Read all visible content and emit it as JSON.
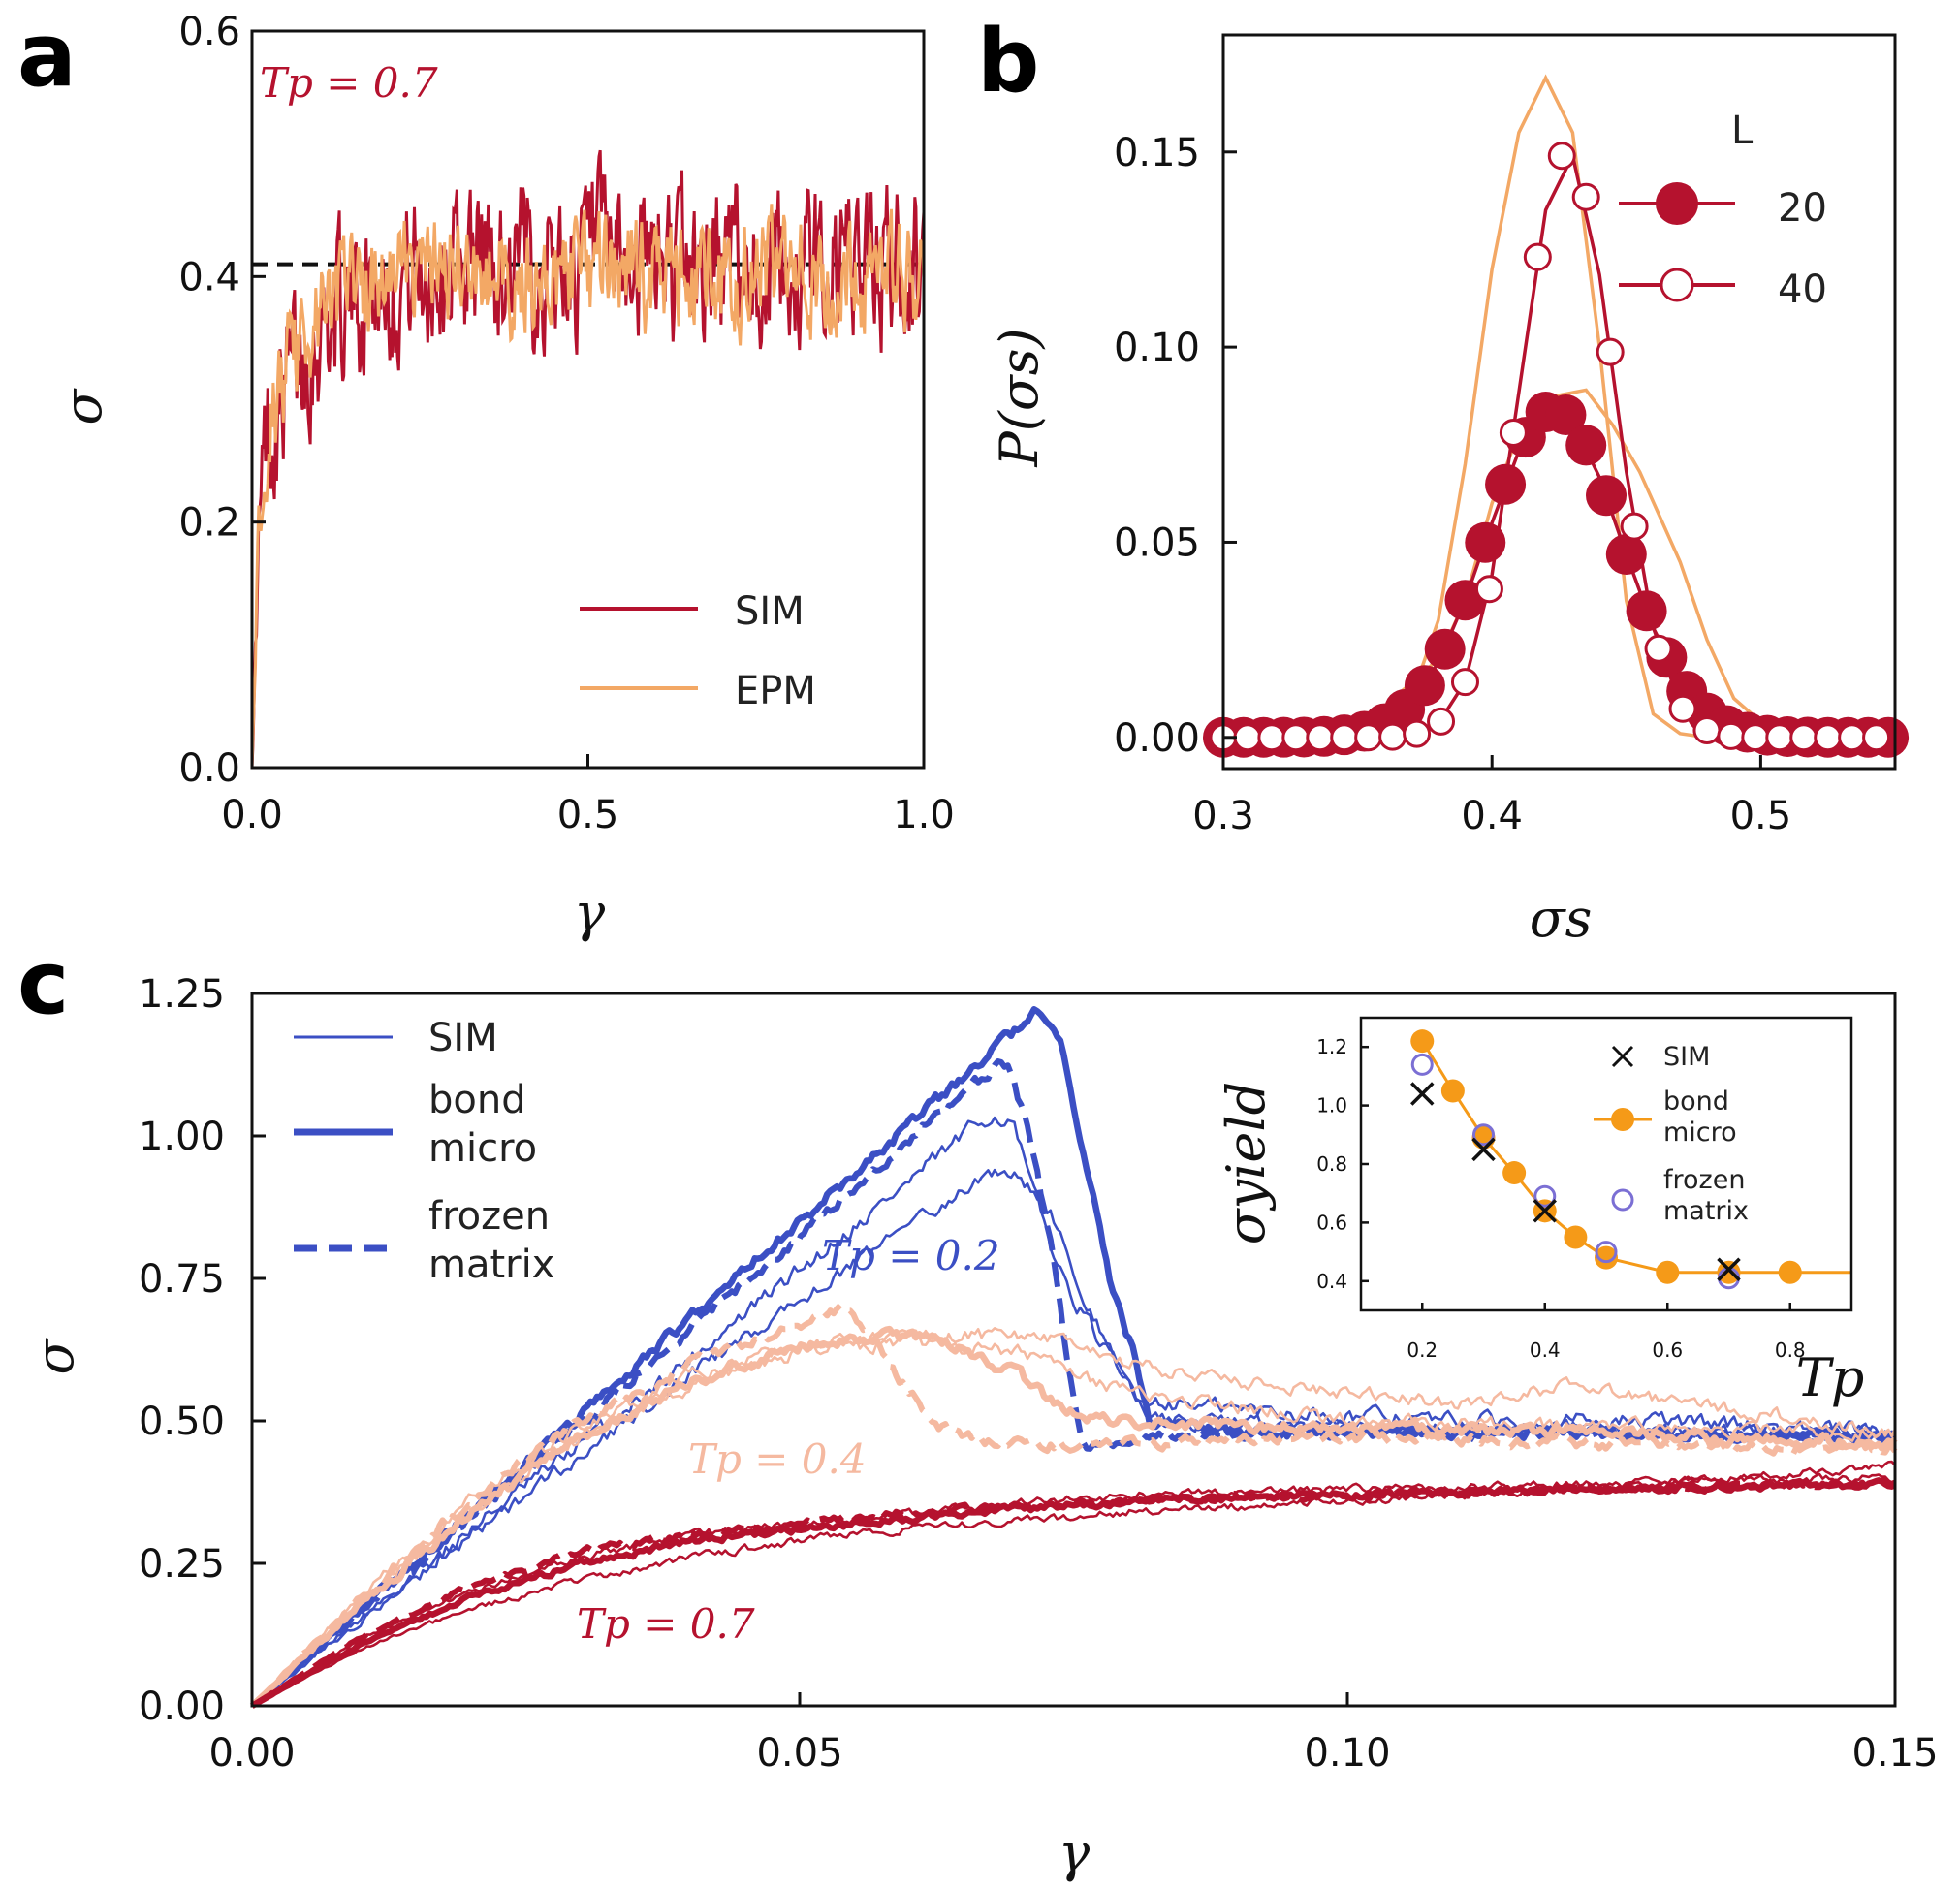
{
  "colors": {
    "sim": "#b5122e",
    "epm": "#f3a865",
    "blue": "#3b4fc4",
    "peach": "#f5b9a0",
    "orange": "#f59a18",
    "purple": "#7b6fd4"
  },
  "chart_data": [
    {
      "id": "a",
      "type": "line",
      "panel_label": "a",
      "xlabel": "γ",
      "ylabel": "σ",
      "xlim": [
        0,
        1
      ],
      "ylim": [
        0,
        0.6
      ],
      "xticks": [
        "0.0",
        "0.5",
        "1.0"
      ],
      "yticks": [
        "0.0",
        "0.2",
        "0.4",
        "0.6"
      ],
      "annotation": "Tp = 0.7",
      "reference_line": 0.41,
      "legend": [
        {
          "name": "SIM",
          "color": "#b5122e"
        },
        {
          "name": "EPM",
          "color": "#f3a865"
        }
      ],
      "series": [
        {
          "name": "SIM",
          "color": "#b5122e",
          "x": [
            0,
            0.01,
            0.02,
            0.04,
            0.07,
            0.1,
            0.15,
            0.2,
            0.3,
            0.4,
            0.6,
            0.8,
            1.0
          ],
          "y": [
            0,
            0.18,
            0.26,
            0.3,
            0.33,
            0.36,
            0.38,
            0.4,
            0.41,
            0.41,
            0.41,
            0.41,
            0.41
          ],
          "noise": 0.05
        },
        {
          "name": "EPM",
          "color": "#f3a865",
          "x": [
            0,
            0.01,
            0.02,
            0.04,
            0.07,
            0.1,
            0.15,
            0.2,
            0.3,
            0.4,
            0.6,
            0.8,
            1.0
          ],
          "y": [
            0,
            0.2,
            0.27,
            0.31,
            0.34,
            0.37,
            0.39,
            0.4,
            0.4,
            0.4,
            0.4,
            0.4,
            0.4
          ],
          "noise": 0.035
        }
      ]
    },
    {
      "id": "b",
      "type": "line",
      "panel_label": "b",
      "xlabel": "σs",
      "ylabel": "P(σs)",
      "xlim": [
        0.3,
        0.55
      ],
      "ylim": [
        -0.008,
        0.18
      ],
      "xticks": [
        "0.3",
        "0.4",
        "0.5"
      ],
      "yticks": [
        "0.00",
        "0.05",
        "0.10",
        "0.15"
      ],
      "legend_title": "L",
      "legend": [
        {
          "name": "20",
          "marker": "filled"
        },
        {
          "name": "40",
          "marker": "open"
        }
      ],
      "series": [
        {
          "name": "20",
          "kind": "markers-line",
          "marker": "filled",
          "color": "#b5122e",
          "mu": 0.423,
          "sigma": 0.025,
          "amp": 0.084
        },
        {
          "name": "40",
          "kind": "markers-line",
          "marker": "open",
          "color": "#b5122e",
          "mu": 0.428,
          "sigma": 0.0175,
          "amp": 0.15
        },
        {
          "name": "EPM 20",
          "kind": "line",
          "color": "#f3a865",
          "x": [
            0.3,
            0.34,
            0.36,
            0.38,
            0.39,
            0.4,
            0.41,
            0.42,
            0.435,
            0.445,
            0.455,
            0.47,
            0.48,
            0.49,
            0.5,
            0.52,
            0.55
          ],
          "y": [
            0.0,
            0.002,
            0.008,
            0.02,
            0.035,
            0.06,
            0.078,
            0.087,
            0.089,
            0.08,
            0.068,
            0.045,
            0.025,
            0.01,
            0.004,
            0.0,
            0.0
          ]
        },
        {
          "name": "EPM 40",
          "kind": "line",
          "color": "#f3a865",
          "x": [
            0.3,
            0.35,
            0.37,
            0.38,
            0.39,
            0.4,
            0.41,
            0.42,
            0.43,
            0.44,
            0.45,
            0.46,
            0.47,
            0.48,
            0.55
          ],
          "y": [
            0.0,
            0.001,
            0.01,
            0.03,
            0.07,
            0.12,
            0.155,
            0.169,
            0.155,
            0.1,
            0.035,
            0.006,
            0.001,
            0.0,
            0.0
          ]
        }
      ]
    },
    {
      "id": "c",
      "type": "line",
      "panel_label": "c",
      "xlabel": "γ",
      "ylabel": "σ",
      "xlim": [
        0,
        0.15
      ],
      "ylim": [
        0,
        1.25
      ],
      "xticks": [
        "0.00",
        "0.05",
        "0.10",
        "0.15"
      ],
      "yticks": [
        "0.00",
        "0.25",
        "0.50",
        "0.75",
        "1.00",
        "1.25"
      ],
      "annotations": [
        "Tp = 0.2",
        "Tp = 0.4",
        "Tp = 0.7"
      ],
      "legend": [
        {
          "name": "SIM",
          "style": "thin"
        },
        {
          "name": "bond micro",
          "style": "thick"
        },
        {
          "name": "frozen matrix",
          "style": "dashed"
        }
      ],
      "series": [
        {
          "name": "Tp 0.2 SIM a",
          "color": "#3b4fc4",
          "style": "thin",
          "x": [
            0,
            0.02,
            0.04,
            0.06,
            0.0675,
            0.0695,
            0.071,
            0.074,
            0.078,
            0.081,
            0.09,
            0.11,
            0.13,
            0.15
          ],
          "y": [
            0,
            0.31,
            0.61,
            0.92,
            1.04,
            1.02,
            0.92,
            0.75,
            0.62,
            0.54,
            0.52,
            0.5,
            0.5,
            0.48
          ],
          "noise": 0.012
        },
        {
          "name": "Tp 0.2 SIM b",
          "color": "#3b4fc4",
          "style": "thin",
          "x": [
            0,
            0.02,
            0.04,
            0.06,
            0.068,
            0.07,
            0.073,
            0.076,
            0.079,
            0.082,
            0.1,
            0.15
          ],
          "y": [
            0,
            0.3,
            0.58,
            0.84,
            0.94,
            0.93,
            0.86,
            0.72,
            0.6,
            0.5,
            0.49,
            0.48
          ],
          "noise": 0.01
        },
        {
          "name": "Tp 0.2 bond micro",
          "color": "#3b4fc4",
          "style": "thick",
          "x": [
            0,
            0.02,
            0.04,
            0.06,
            0.07,
            0.0715,
            0.074,
            0.0765,
            0.0785,
            0.0805,
            0.082,
            0.09,
            0.12,
            0.15
          ],
          "y": [
            0,
            0.34,
            0.68,
            1.02,
            1.19,
            1.22,
            1.15,
            0.92,
            0.73,
            0.62,
            0.5,
            0.48,
            0.48,
            0.47
          ],
          "noise": 0.008
        },
        {
          "name": "Tp 0.2 frozen matrix",
          "color": "#3b4fc4",
          "style": "dashed",
          "x": [
            0,
            0.02,
            0.04,
            0.06,
            0.0685,
            0.069,
            0.071,
            0.073,
            0.0745,
            0.076,
            0.08,
            0.1,
            0.15
          ],
          "y": [
            0,
            0.33,
            0.66,
            0.99,
            1.13,
            1.12,
            1.0,
            0.8,
            0.6,
            0.45,
            0.47,
            0.48,
            0.47
          ],
          "noise": 0.008
        },
        {
          "name": "Tp 0.4 SIM a",
          "color": "#f5b9a0",
          "style": "thin",
          "x": [
            0,
            0.01,
            0.02,
            0.03,
            0.04,
            0.05,
            0.06,
            0.07,
            0.075,
            0.08,
            0.09,
            0.11,
            0.12,
            0.15
          ],
          "y": [
            0,
            0.19,
            0.36,
            0.49,
            0.58,
            0.63,
            0.65,
            0.65,
            0.64,
            0.6,
            0.57,
            0.53,
            0.56,
            0.48
          ],
          "noise": 0.01
        },
        {
          "name": "Tp 0.4 SIM b",
          "color": "#f5b9a0",
          "style": "thin",
          "x": [
            0,
            0.01,
            0.02,
            0.03,
            0.04,
            0.05,
            0.06,
            0.07,
            0.08,
            0.1,
            0.15
          ],
          "y": [
            0,
            0.18,
            0.34,
            0.47,
            0.56,
            0.62,
            0.64,
            0.62,
            0.55,
            0.5,
            0.48
          ],
          "noise": 0.01
        },
        {
          "name": "Tp 0.4 bond micro",
          "color": "#f5b9a0",
          "style": "thick",
          "x": [
            0,
            0.01,
            0.02,
            0.03,
            0.04,
            0.05,
            0.057,
            0.063,
            0.07,
            0.074,
            0.078,
            0.09,
            0.12,
            0.15
          ],
          "y": [
            0,
            0.18,
            0.34,
            0.47,
            0.57,
            0.63,
            0.65,
            0.64,
            0.58,
            0.52,
            0.5,
            0.49,
            0.48,
            0.46
          ],
          "noise": 0.008
        },
        {
          "name": "Tp 0.4 frozen matrix",
          "color": "#f5b9a0",
          "style": "dashed",
          "x": [
            0,
            0.01,
            0.02,
            0.03,
            0.04,
            0.05,
            0.054,
            0.057,
            0.06,
            0.063,
            0.065,
            0.07,
            0.08,
            0.1,
            0.15
          ],
          "y": [
            0,
            0.19,
            0.36,
            0.5,
            0.6,
            0.67,
            0.7,
            0.64,
            0.55,
            0.49,
            0.47,
            0.46,
            0.46,
            0.47,
            0.45
          ],
          "noise": 0.008
        },
        {
          "name": "Tp 0.7 SIM a",
          "color": "#b5122e",
          "style": "thin",
          "x": [
            0,
            0.01,
            0.02,
            0.03,
            0.04,
            0.05,
            0.06,
            0.08,
            0.1,
            0.12,
            0.15
          ],
          "y": [
            0,
            0.1,
            0.17,
            0.22,
            0.26,
            0.29,
            0.31,
            0.34,
            0.36,
            0.38,
            0.42
          ],
          "noise": 0.006
        },
        {
          "name": "Tp 0.7 SIM b",
          "color": "#b5122e",
          "style": "thin",
          "x": [
            0,
            0.01,
            0.02,
            0.03,
            0.04,
            0.05,
            0.06,
            0.08,
            0.1,
            0.12,
            0.15
          ],
          "y": [
            0,
            0.12,
            0.2,
            0.26,
            0.3,
            0.32,
            0.34,
            0.37,
            0.38,
            0.39,
            0.4
          ],
          "noise": 0.006
        },
        {
          "name": "Tp 0.7 bond micro",
          "color": "#b5122e",
          "style": "thick",
          "x": [
            0,
            0.01,
            0.02,
            0.03,
            0.04,
            0.05,
            0.06,
            0.08,
            0.1,
            0.12,
            0.15
          ],
          "y": [
            0,
            0.11,
            0.19,
            0.25,
            0.29,
            0.31,
            0.33,
            0.36,
            0.37,
            0.38,
            0.39
          ],
          "noise": 0.005
        },
        {
          "name": "Tp 0.7 frozen matrix",
          "color": "#b5122e",
          "style": "dashed",
          "x": [
            0,
            0.01,
            0.02,
            0.03,
            0.04,
            0.05,
            0.06,
            0.08,
            0.1,
            0.12,
            0.15
          ],
          "y": [
            0,
            0.12,
            0.21,
            0.27,
            0.3,
            0.32,
            0.34,
            0.36,
            0.37,
            0.38,
            0.39
          ],
          "noise": 0.005
        }
      ]
    },
    {
      "id": "inset",
      "type": "line",
      "xlabel": "Tp",
      "ylabel": "σyield",
      "xlim": [
        0.1,
        0.9
      ],
      "ylim": [
        0.3,
        1.3
      ],
      "xticks": [
        "0.2",
        "0.4",
        "0.6",
        "0.8"
      ],
      "yticks": [
        "0.4",
        "0.6",
        "0.8",
        "1.0",
        "1.2"
      ],
      "legend": [
        {
          "name": "SIM",
          "marker": "x"
        },
        {
          "name": "bond micro",
          "marker": "filled"
        },
        {
          "name": "frozen matrix",
          "marker": "open"
        }
      ],
      "series": [
        {
          "name": "SIM",
          "marker": "x",
          "color": "#111111",
          "x": [
            0.2,
            0.3,
            0.4,
            0.7
          ],
          "y": [
            1.04,
            0.85,
            0.64,
            0.44
          ]
        },
        {
          "name": "bond micro",
          "marker": "filled",
          "color": "#f59a18",
          "x": [
            0.2,
            0.25,
            0.3,
            0.35,
            0.4,
            0.45,
            0.5,
            0.6,
            0.7,
            0.8
          ],
          "y": [
            1.22,
            1.05,
            0.89,
            0.77,
            0.64,
            0.55,
            0.48,
            0.43,
            0.43,
            0.43
          ]
        },
        {
          "name": "frozen matrix",
          "marker": "open",
          "color": "#7b6fd4",
          "x": [
            0.2,
            0.3,
            0.4,
            0.5,
            0.7
          ],
          "y": [
            1.14,
            0.9,
            0.69,
            0.5,
            0.41
          ]
        }
      ]
    }
  ]
}
